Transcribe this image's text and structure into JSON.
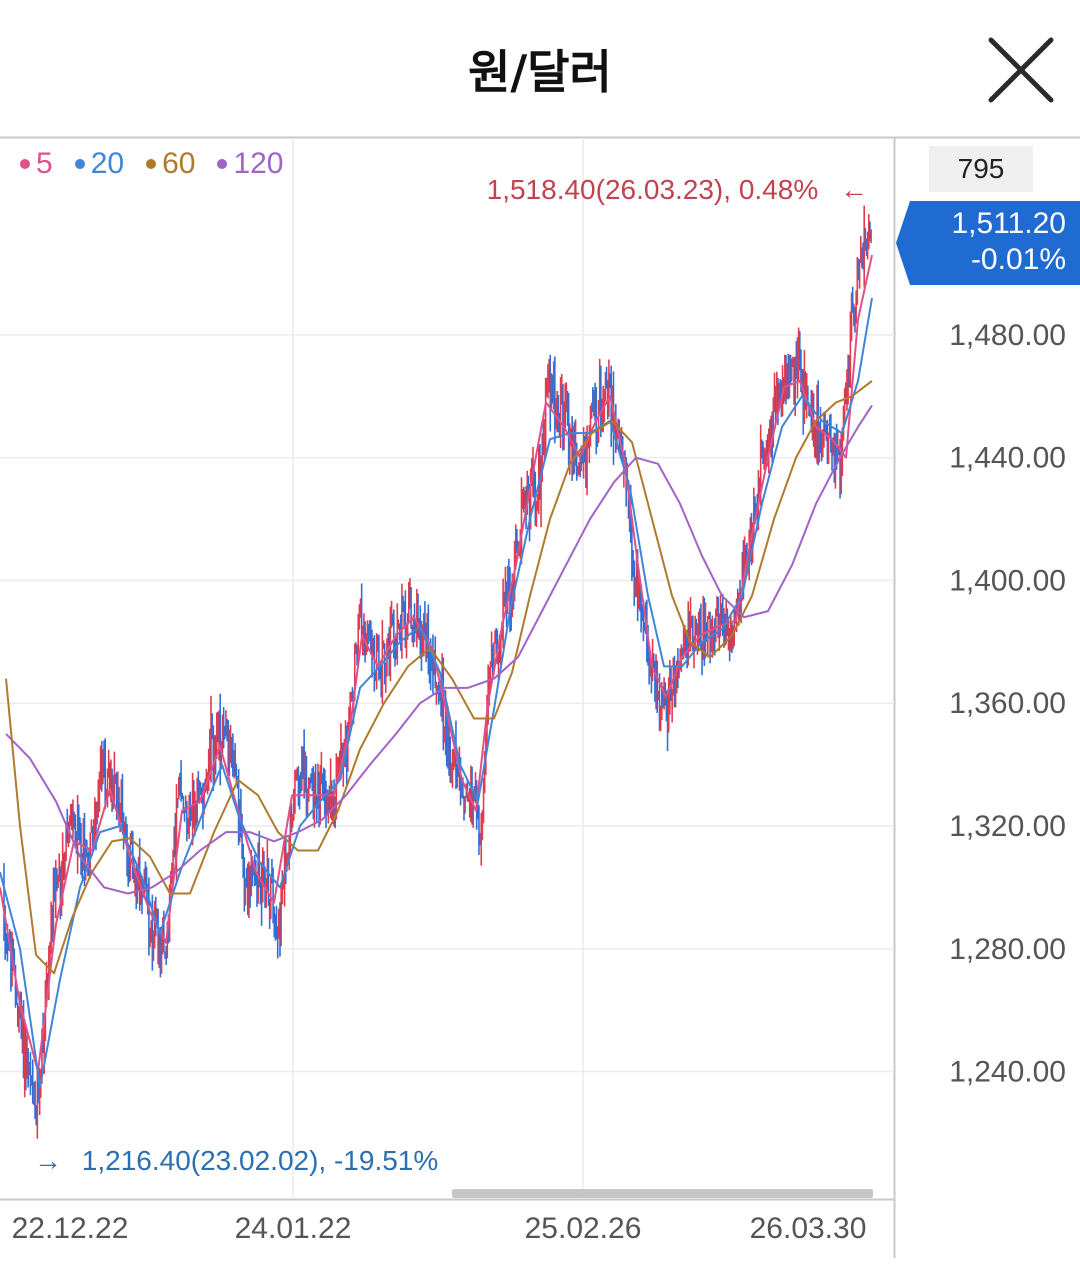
{
  "header": {
    "title": "원/달러"
  },
  "colors": {
    "up": "#e23b4e",
    "down": "#2f6fd6",
    "ma5": "#e0508a",
    "ma20": "#3f86d9",
    "ma60": "#b07a2c",
    "ma120": "#a063c8",
    "flag": "#1f6bd1"
  },
  "chart_data": {
    "type": "candlestick",
    "legend": [
      {
        "label": "5",
        "color": "#e0508a"
      },
      {
        "label": "20",
        "color": "#3f86d9"
      },
      {
        "label": "60",
        "color": "#b07a2c"
      },
      {
        "label": "120",
        "color": "#a063c8"
      }
    ],
    "y_ticks": [
      "1,480.00",
      "1,440.00",
      "1,400.00",
      "1,360.00",
      "1,320.00",
      "1,280.00",
      "1,240.00"
    ],
    "y_tick_values": [
      1480,
      1440,
      1400,
      1360,
      1320,
      1280,
      1240
    ],
    "x_ticks": [
      "22.12.22",
      "24.01.22",
      "25.02.26",
      "26.03.30"
    ],
    "ylim": [
      1200,
      1545
    ],
    "candle_count": "795",
    "current_price": "1,511.20",
    "current_change": "-0.01%",
    "max_annotation": "1,518.40(26.03.23), 0.48%",
    "min_annotation": "1,216.40(23.02.02), -19.51%",
    "max_arrow": "←",
    "min_arrow": "→",
    "price_path": [
      [
        0,
        1300
      ],
      [
        18,
        1260
      ],
      [
        36,
        1224
      ],
      [
        52,
        1290
      ],
      [
        70,
        1320
      ],
      [
        88,
        1310
      ],
      [
        102,
        1338
      ],
      [
        118,
        1330
      ],
      [
        138,
        1300
      ],
      [
        150,
        1290
      ],
      [
        164,
        1275
      ],
      [
        178,
        1330
      ],
      [
        196,
        1325
      ],
      [
        212,
        1345
      ],
      [
        230,
        1350
      ],
      [
        246,
        1300
      ],
      [
        262,
        1305
      ],
      [
        280,
        1290
      ],
      [
        296,
        1340
      ],
      [
        318,
        1330
      ],
      [
        334,
        1330
      ],
      [
        350,
        1355
      ],
      [
        360,
        1390
      ],
      [
        376,
        1370
      ],
      [
        392,
        1380
      ],
      [
        410,
        1390
      ],
      [
        428,
        1380
      ],
      [
        440,
        1362
      ],
      [
        456,
        1335
      ],
      [
        470,
        1330
      ],
      [
        480,
        1318
      ],
      [
        490,
        1370
      ],
      [
        500,
        1385
      ],
      [
        512,
        1400
      ],
      [
        524,
        1428
      ],
      [
        538,
        1430
      ],
      [
        548,
        1465
      ],
      [
        566,
        1450
      ],
      [
        580,
        1435
      ],
      [
        592,
        1450
      ],
      [
        608,
        1465
      ],
      [
        620,
        1445
      ],
      [
        632,
        1410
      ],
      [
        642,
        1385
      ],
      [
        654,
        1368
      ],
      [
        666,
        1358
      ],
      [
        680,
        1375
      ],
      [
        696,
        1382
      ],
      [
        714,
        1388
      ],
      [
        734,
        1385
      ],
      [
        748,
        1412
      ],
      [
        762,
        1435
      ],
      [
        778,
        1462
      ],
      [
        798,
        1470
      ],
      [
        812,
        1450
      ],
      [
        826,
        1448
      ],
      [
        840,
        1438
      ],
      [
        852,
        1490
      ],
      [
        868,
        1511
      ]
    ],
    "ma_paths": {
      "ma5": [
        [
          0,
          1300
        ],
        [
          20,
          1262
        ],
        [
          38,
          1240
        ],
        [
          56,
          1288
        ],
        [
          74,
          1315
        ],
        [
          92,
          1312
        ],
        [
          110,
          1332
        ],
        [
          130,
          1310
        ],
        [
          150,
          1292
        ],
        [
          166,
          1282
        ],
        [
          182,
          1325
        ],
        [
          200,
          1328
        ],
        [
          220,
          1346
        ],
        [
          238,
          1325
        ],
        [
          256,
          1305
        ],
        [
          274,
          1295
        ],
        [
          292,
          1330
        ],
        [
          312,
          1330
        ],
        [
          334,
          1330
        ],
        [
          350,
          1352
        ],
        [
          362,
          1382
        ],
        [
          378,
          1372
        ],
        [
          396,
          1382
        ],
        [
          414,
          1388
        ],
        [
          432,
          1378
        ],
        [
          446,
          1358
        ],
        [
          462,
          1335
        ],
        [
          476,
          1325
        ],
        [
          488,
          1360
        ],
        [
          502,
          1385
        ],
        [
          516,
          1405
        ],
        [
          530,
          1430
        ],
        [
          546,
          1458
        ],
        [
          564,
          1450
        ],
        [
          580,
          1440
        ],
        [
          596,
          1452
        ],
        [
          610,
          1460
        ],
        [
          624,
          1440
        ],
        [
          638,
          1405
        ],
        [
          652,
          1372
        ],
        [
          666,
          1362
        ],
        [
          682,
          1375
        ],
        [
          700,
          1382
        ],
        [
          718,
          1385
        ],
        [
          736,
          1387
        ],
        [
          752,
          1415
        ],
        [
          768,
          1440
        ],
        [
          784,
          1463
        ],
        [
          800,
          1465
        ],
        [
          816,
          1450
        ],
        [
          832,
          1446
        ],
        [
          846,
          1440
        ],
        [
          858,
          1485
        ],
        [
          872,
          1506
        ]
      ],
      "ma20": [
        [
          0,
          1305
        ],
        [
          20,
          1280
        ],
        [
          40,
          1235
        ],
        [
          60,
          1270
        ],
        [
          80,
          1300
        ],
        [
          100,
          1318
        ],
        [
          120,
          1320
        ],
        [
          140,
          1305
        ],
        [
          160,
          1285
        ],
        [
          180,
          1305
        ],
        [
          200,
          1322
        ],
        [
          222,
          1340
        ],
        [
          240,
          1322
        ],
        [
          260,
          1308
        ],
        [
          280,
          1300
        ],
        [
          300,
          1320
        ],
        [
          320,
          1328
        ],
        [
          340,
          1335
        ],
        [
          360,
          1365
        ],
        [
          380,
          1372
        ],
        [
          400,
          1380
        ],
        [
          420,
          1385
        ],
        [
          440,
          1370
        ],
        [
          460,
          1340
        ],
        [
          478,
          1328
        ],
        [
          494,
          1358
        ],
        [
          510,
          1390
        ],
        [
          530,
          1420
        ],
        [
          550,
          1446
        ],
        [
          570,
          1448
        ],
        [
          590,
          1448
        ],
        [
          610,
          1452
        ],
        [
          630,
          1430
        ],
        [
          648,
          1395
        ],
        [
          664,
          1372
        ],
        [
          682,
          1372
        ],
        [
          702,
          1380
        ],
        [
          722,
          1384
        ],
        [
          742,
          1395
        ],
        [
          762,
          1425
        ],
        [
          782,
          1450
        ],
        [
          802,
          1460
        ],
        [
          822,
          1452
        ],
        [
          842,
          1448
        ],
        [
          858,
          1465
        ],
        [
          872,
          1492
        ]
      ],
      "ma60": [
        [
          6,
          1368
        ],
        [
          20,
          1320
        ],
        [
          36,
          1278
        ],
        [
          54,
          1272
        ],
        [
          72,
          1290
        ],
        [
          92,
          1305
        ],
        [
          112,
          1315
        ],
        [
          130,
          1316
        ],
        [
          150,
          1310
        ],
        [
          170,
          1298
        ],
        [
          190,
          1298
        ],
        [
          214,
          1318
        ],
        [
          238,
          1335
        ],
        [
          258,
          1330
        ],
        [
          278,
          1318
        ],
        [
          298,
          1312
        ],
        [
          318,
          1312
        ],
        [
          338,
          1325
        ],
        [
          360,
          1345
        ],
        [
          384,
          1360
        ],
        [
          408,
          1372
        ],
        [
          430,
          1378
        ],
        [
          452,
          1368
        ],
        [
          474,
          1355
        ],
        [
          494,
          1355
        ],
        [
          512,
          1370
        ],
        [
          530,
          1395
        ],
        [
          550,
          1420
        ],
        [
          570,
          1438
        ],
        [
          592,
          1448
        ],
        [
          612,
          1452
        ],
        [
          632,
          1445
        ],
        [
          652,
          1420
        ],
        [
          672,
          1395
        ],
        [
          690,
          1380
        ],
        [
          710,
          1375
        ],
        [
          732,
          1382
        ],
        [
          752,
          1395
        ],
        [
          774,
          1420
        ],
        [
          796,
          1440
        ],
        [
          816,
          1452
        ],
        [
          836,
          1458
        ],
        [
          852,
          1460
        ],
        [
          872,
          1465
        ]
      ],
      "ma120": [
        [
          6,
          1350
        ],
        [
          30,
          1342
        ],
        [
          56,
          1328
        ],
        [
          80,
          1310
        ],
        [
          104,
          1300
        ],
        [
          128,
          1298
        ],
        [
          152,
          1300
        ],
        [
          176,
          1305
        ],
        [
          200,
          1312
        ],
        [
          226,
          1318
        ],
        [
          250,
          1318
        ],
        [
          274,
          1315
        ],
        [
          298,
          1318
        ],
        [
          322,
          1322
        ],
        [
          346,
          1330
        ],
        [
          370,
          1340
        ],
        [
          396,
          1350
        ],
        [
          420,
          1360
        ],
        [
          444,
          1365
        ],
        [
          468,
          1365
        ],
        [
          494,
          1368
        ],
        [
          518,
          1375
        ],
        [
          542,
          1390
        ],
        [
          566,
          1405
        ],
        [
          590,
          1420
        ],
        [
          614,
          1432
        ],
        [
          636,
          1440
        ],
        [
          658,
          1438
        ],
        [
          680,
          1425
        ],
        [
          702,
          1408
        ],
        [
          722,
          1395
        ],
        [
          744,
          1388
        ],
        [
          768,
          1390
        ],
        [
          792,
          1405
        ],
        [
          816,
          1425
        ],
        [
          840,
          1440
        ],
        [
          858,
          1450
        ],
        [
          872,
          1457
        ]
      ]
    }
  }
}
